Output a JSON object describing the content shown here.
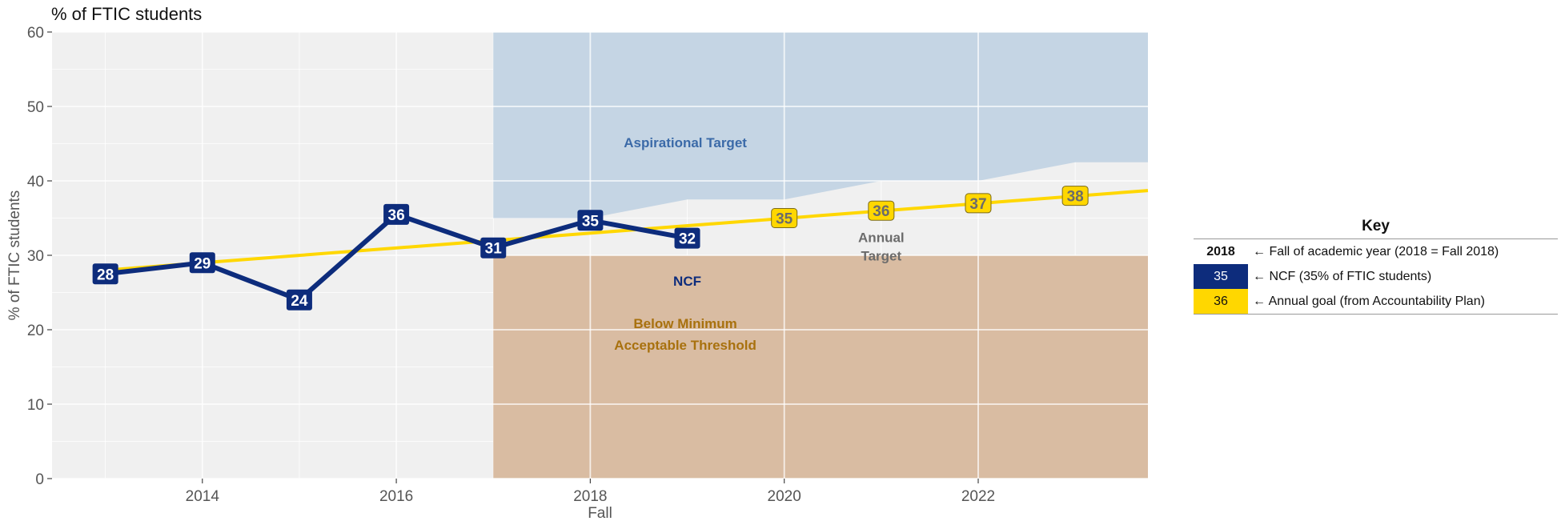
{
  "chart_data": {
    "type": "line",
    "title": "% of FTIC students",
    "xlabel": "Fall",
    "ylabel": "% of FTIC students",
    "xlim": [
      2012.45,
      2023.75
    ],
    "ylim": [
      0,
      60
    ],
    "x_ticks": [
      2014,
      2016,
      2018,
      2020,
      2022
    ],
    "y_ticks": [
      0,
      10,
      20,
      30,
      40,
      50,
      60
    ],
    "grid": true,
    "series": [
      {
        "name": "NCF",
        "color": "#0d2c7c",
        "x": [
          2013,
          2014,
          2015,
          2016,
          2017,
          2018,
          2019
        ],
        "values": [
          27.5,
          29,
          24,
          35.5,
          31,
          34.7,
          32.3
        ],
        "labels": [
          "28",
          "29",
          "24",
          "36",
          "31",
          "35",
          "32"
        ]
      },
      {
        "name": "Annual Target",
        "color": "#ffd700",
        "line_x": [
          2013,
          2023.75
        ],
        "line_values": [
          28,
          38.7
        ],
        "x": [
          2020,
          2021,
          2022,
          2023
        ],
        "values": [
          35,
          36,
          37,
          38
        ],
        "labels": [
          "35",
          "36",
          "37",
          "38"
        ]
      }
    ],
    "regions": [
      {
        "name": "Aspirational Target",
        "color": "#c5d5e4",
        "text_color": "#3b6aa8",
        "x_start": 2017,
        "upper": 60,
        "lower_x": [
          2017,
          2018,
          2019,
          2020,
          2021,
          2022,
          2023,
          2023.75
        ],
        "lower_y": [
          35,
          35,
          37.5,
          37.5,
          40,
          40,
          42.5,
          42.5
        ]
      },
      {
        "name": "Below Minimum Acceptable Threshold",
        "color": "#d9bca2",
        "text_color": "#a8710e",
        "x_start": 2017,
        "x_end": 2023.75,
        "y_range": [
          0,
          30
        ]
      }
    ],
    "annotations": {
      "aspirational": "Aspirational Target",
      "below_line1": "Below Minimum",
      "below_line2": "Acceptable Threshold",
      "ncf": "NCF",
      "annual_line1": "Annual",
      "annual_line2": "Target"
    }
  },
  "key": {
    "title": "Key",
    "rows": [
      {
        "swatch": "2018",
        "text": "← Fall of academic year (2018 = Fall 2018)"
      },
      {
        "swatch": "35",
        "text": "← NCF (35% of FTIC students)"
      },
      {
        "swatch": "36",
        "text": "← Annual goal (from Accountability Plan)"
      }
    ]
  }
}
